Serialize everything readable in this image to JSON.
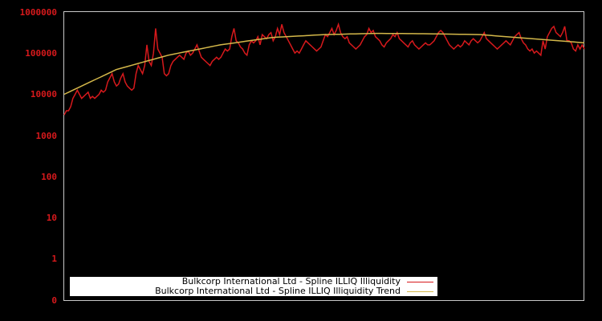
{
  "chart_data": {
    "type": "line",
    "title": "",
    "xlabel": "",
    "ylabel": "",
    "yscale": "log",
    "y_ticks": [
      "1000000",
      "100000",
      "10000",
      "1000",
      "100",
      "10",
      "1",
      "0"
    ],
    "ylim": [
      0,
      1000000
    ],
    "grid": false,
    "legend_position": "bottom-left inside plot",
    "series": [
      {
        "name": "Bulkcorp International Ltd - Spline ILLIQ Illiquidity",
        "color": "#d7191c",
        "log10_values": [
          3.5,
          3.6,
          3.6,
          3.7,
          3.9,
          4.0,
          4.1,
          4.0,
          3.9,
          3.95,
          4.0,
          4.05,
          3.9,
          3.95,
          3.9,
          3.95,
          4.0,
          4.1,
          4.05,
          4.1,
          4.3,
          4.4,
          4.5,
          4.3,
          4.2,
          4.25,
          4.4,
          4.5,
          4.3,
          4.2,
          4.15,
          4.1,
          4.15,
          4.5,
          4.7,
          4.6,
          4.5,
          4.7,
          5.2,
          4.8,
          4.7,
          5.0,
          5.6,
          5.1,
          5.0,
          4.9,
          4.5,
          4.45,
          4.5,
          4.7,
          4.8,
          4.85,
          4.9,
          4.95,
          4.9,
          4.85,
          5.0,
          5.05,
          4.95,
          5.0,
          5.1,
          5.2,
          5.05,
          4.9,
          4.85,
          4.8,
          4.75,
          4.7,
          4.8,
          4.85,
          4.9,
          4.85,
          4.9,
          5.0,
          5.1,
          5.05,
          5.1,
          5.4,
          5.6,
          5.3,
          5.25,
          5.15,
          5.1,
          5.0,
          4.95,
          5.2,
          5.3,
          5.25,
          5.3,
          5.4,
          5.2,
          5.45,
          5.4,
          5.35,
          5.45,
          5.5,
          5.3,
          5.4,
          5.6,
          5.45,
          5.7,
          5.5,
          5.4,
          5.3,
          5.2,
          5.1,
          5.0,
          5.05,
          5.0,
          5.1,
          5.2,
          5.3,
          5.25,
          5.2,
          5.15,
          5.1,
          5.05,
          5.1,
          5.15,
          5.3,
          5.45,
          5.4,
          5.5,
          5.6,
          5.45,
          5.55,
          5.7,
          5.5,
          5.4,
          5.35,
          5.4,
          5.25,
          5.2,
          5.15,
          5.1,
          5.15,
          5.2,
          5.3,
          5.4,
          5.45,
          5.6,
          5.5,
          5.55,
          5.4,
          5.35,
          5.3,
          5.2,
          5.15,
          5.25,
          5.3,
          5.35,
          5.45,
          5.4,
          5.5,
          5.35,
          5.3,
          5.25,
          5.2,
          5.15,
          5.25,
          5.3,
          5.2,
          5.15,
          5.1,
          5.15,
          5.2,
          5.25,
          5.2,
          5.2,
          5.25,
          5.3,
          5.4,
          5.5,
          5.55,
          5.5,
          5.4,
          5.3,
          5.2,
          5.15,
          5.1,
          5.15,
          5.2,
          5.15,
          5.2,
          5.3,
          5.25,
          5.2,
          5.3,
          5.35,
          5.3,
          5.25,
          5.3,
          5.4,
          5.5,
          5.35,
          5.3,
          5.25,
          5.2,
          5.15,
          5.1,
          5.15,
          5.2,
          5.25,
          5.3,
          5.25,
          5.2,
          5.3,
          5.4,
          5.45,
          5.5,
          5.35,
          5.25,
          5.2,
          5.1,
          5.05,
          5.1,
          5.0,
          5.05,
          5.0,
          4.95,
          5.3,
          5.1,
          5.4,
          5.5,
          5.6,
          5.65,
          5.5,
          5.45,
          5.4,
          5.5,
          5.65,
          5.3,
          5.3,
          5.25,
          5.1,
          5.05,
          5.2,
          5.1,
          5.2,
          5.1
        ],
        "approx_range": [
          3000,
          600000
        ]
      },
      {
        "name": "Bulkcorp International Ltd - Spline ILLIQ Illiquidity Trend",
        "color": "#d4b84a",
        "log10_values_at_x_frac": [
          [
            0.0,
            4.0
          ],
          [
            0.1,
            4.6
          ],
          [
            0.2,
            4.95
          ],
          [
            0.3,
            5.2
          ],
          [
            0.4,
            5.38
          ],
          [
            0.5,
            5.45
          ],
          [
            0.6,
            5.48
          ],
          [
            0.7,
            5.47
          ],
          [
            0.8,
            5.45
          ],
          [
            0.9,
            5.35
          ],
          [
            1.0,
            5.25
          ]
        ]
      }
    ]
  },
  "axes": {
    "y_tick_labels": [
      "1000000",
      "100000",
      "10000",
      "1000",
      "100",
      "10",
      "1",
      "0"
    ]
  },
  "legend": {
    "items": [
      {
        "label": "Bulkcorp International Ltd - Spline ILLIQ Illiquidity",
        "color": "#d7191c"
      },
      {
        "label": "Bulkcorp International Ltd - Spline ILLIQ Illiquidity Trend",
        "color": "#d4b84a"
      }
    ]
  }
}
